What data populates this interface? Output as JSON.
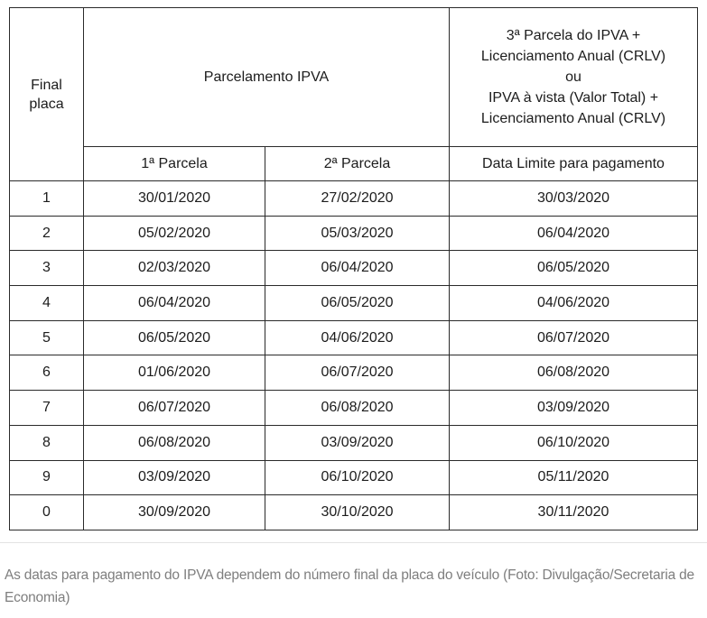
{
  "colors": {
    "table_border": "#2a2a2a",
    "table_text": "#1c1c1c",
    "caption_text": "#7e7e7e",
    "background": "#ffffff"
  },
  "table": {
    "header": {
      "final_placa": "Final\nplaca",
      "parcelamento": "Parcelamento IPVA",
      "terceira_parcela": "3ª Parcela do IPVA +\nLicenciamento Anual (CRLV)\nou\nIPVA à vista (Valor Total) +\nLicenciamento Anual (CRLV)",
      "sub_parcela_1": "1ª Parcela",
      "sub_parcela_2": "2ª Parcela",
      "sub_data_limite": "Data Limite para pagamento"
    },
    "rows": [
      {
        "final": "1",
        "p1": "30/01/2020",
        "p2": "27/02/2020",
        "limite": "30/03/2020"
      },
      {
        "final": "2",
        "p1": "05/02/2020",
        "p2": "05/03/2020",
        "limite": "06/04/2020"
      },
      {
        "final": "3",
        "p1": "02/03/2020",
        "p2": "06/04/2020",
        "limite": "06/05/2020"
      },
      {
        "final": "4",
        "p1": "06/04/2020",
        "p2": "06/05/2020",
        "limite": "04/06/2020"
      },
      {
        "final": "5",
        "p1": "06/05/2020",
        "p2": "04/06/2020",
        "limite": "06/07/2020"
      },
      {
        "final": "6",
        "p1": "01/06/2020",
        "p2": "06/07/2020",
        "limite": "06/08/2020"
      },
      {
        "final": "7",
        "p1": "06/07/2020",
        "p2": "06/08/2020",
        "limite": "03/09/2020"
      },
      {
        "final": "8",
        "p1": "06/08/2020",
        "p2": "03/09/2020",
        "limite": "06/10/2020"
      },
      {
        "final": "9",
        "p1": "03/09/2020",
        "p2": "06/10/2020",
        "limite": "05/11/2020"
      },
      {
        "final": "0",
        "p1": "30/09/2020",
        "p2": "30/10/2020",
        "limite": "30/11/2020"
      }
    ]
  },
  "caption": "As datas para pagamento do IPVA dependem do número final da placa do veículo (Foto: Divulgação/Secretaria de Economia)"
}
